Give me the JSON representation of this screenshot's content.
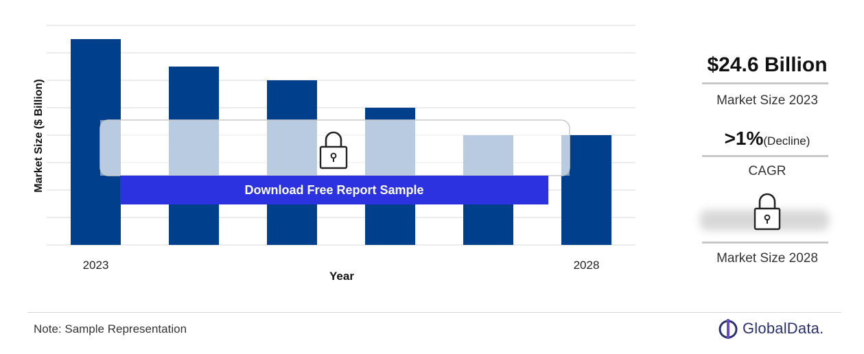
{
  "chart_data": {
    "type": "bar",
    "categories": [
      "2023",
      "",
      "",
      "",
      "",
      "2028"
    ],
    "values": [
      7.5,
      6.5,
      6.0,
      5.0,
      4.0,
      4.0
    ],
    "xlabel": "Year",
    "ylabel": "Market Size ($ Billion)",
    "ylim": [
      0,
      8
    ],
    "grid": true,
    "colors": {
      "bar": "#003f8c",
      "bar_masked": "#7fa1c8",
      "gridline": "#d9d9d9"
    }
  },
  "overlay": {
    "download_label": "Download Free Report Sample",
    "icon": "padlock-icon",
    "button_color": "#2c32e0"
  },
  "panel": {
    "market_size_value": "$24.6 Billion",
    "market_size_label": "Market Size 2023",
    "cagr_value": ">1%",
    "cagr_qualifier": "(Decline)",
    "cagr_label": "CAGR",
    "future_label": "Market Size 2028",
    "future_icon": "padlock-icon"
  },
  "footer": {
    "note": "Note: Sample Representation",
    "logo_text": "GlobalData."
  }
}
